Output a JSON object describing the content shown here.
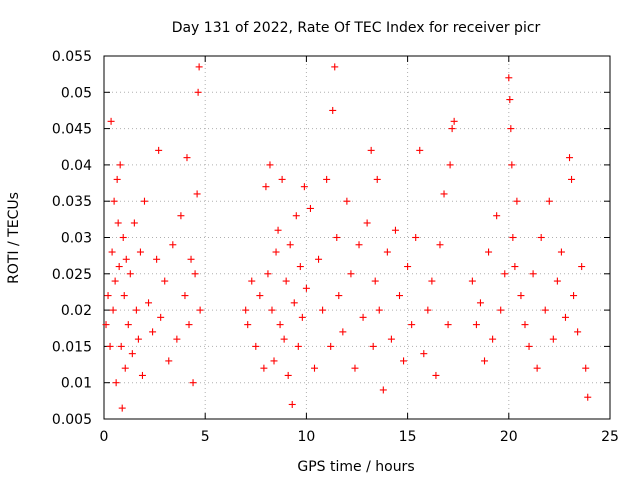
{
  "chart_data": {
    "type": "scatter",
    "title": "Day 131 of 2022, Rate Of TEC Index for receiver picr",
    "xlabel": "GPS time / hours",
    "ylabel": "ROTI / TECUs",
    "xlim": [
      0,
      25
    ],
    "ylim": [
      0.005,
      0.055
    ],
    "xticks": [
      "0",
      "5",
      "10",
      "15",
      "20",
      "25"
    ],
    "yticks": [
      "0.005",
      "0.01",
      "0.015",
      "0.02",
      "0.025",
      "0.03",
      "0.035",
      "0.04",
      "0.045",
      "0.05",
      "0.055"
    ],
    "grid": true,
    "marker": "+",
    "color": "#ff0000",
    "series": [
      {
        "name": "ROTI",
        "x": [
          0.1,
          0.2,
          0.3,
          0.35,
          0.4,
          0.45,
          0.5,
          0.55,
          0.6,
          0.65,
          0.7,
          0.75,
          0.8,
          0.85,
          0.9,
          0.95,
          1.0,
          1.05,
          1.1,
          1.2,
          1.3,
          1.4,
          1.5,
          1.6,
          1.7,
          1.8,
          1.9,
          2.0,
          2.2,
          2.4,
          2.6,
          2.7,
          2.8,
          3.0,
          3.2,
          3.4,
          3.6,
          3.8,
          4.0,
          4.1,
          4.2,
          4.3,
          4.4,
          4.5,
          4.6,
          4.65,
          4.7,
          4.75,
          7.0,
          7.1,
          7.3,
          7.5,
          7.7,
          7.9,
          8.0,
          8.1,
          8.2,
          8.3,
          8.4,
          8.5,
          8.6,
          8.7,
          8.8,
          8.9,
          9.0,
          9.1,
          9.2,
          9.3,
          9.4,
          9.5,
          9.6,
          9.7,
          9.8,
          9.9,
          10.0,
          10.2,
          10.4,
          10.6,
          10.8,
          11.0,
          11.2,
          11.3,
          11.4,
          11.5,
          11.6,
          11.8,
          12.0,
          12.2,
          12.4,
          12.6,
          12.8,
          13.0,
          13.2,
          13.3,
          13.4,
          13.5,
          13.6,
          13.8,
          14.0,
          14.2,
          14.4,
          14.6,
          14.8,
          15.0,
          15.2,
          15.4,
          15.6,
          15.8,
          16.0,
          16.2,
          16.4,
          16.6,
          16.8,
          17.0,
          17.1,
          17.2,
          17.3,
          18.2,
          18.4,
          18.6,
          18.8,
          19.0,
          19.2,
          19.4,
          19.6,
          19.8,
          20.0,
          20.05,
          20.1,
          20.15,
          20.2,
          20.3,
          20.4,
          20.6,
          20.8,
          21.0,
          21.2,
          21.4,
          21.6,
          21.8,
          22.0,
          22.2,
          22.4,
          22.6,
          22.8,
          23.0,
          23.1,
          23.2,
          23.4,
          23.6,
          23.8,
          23.9
        ],
        "y": [
          0.018,
          0.022,
          0.015,
          0.046,
          0.028,
          0.02,
          0.035,
          0.024,
          0.01,
          0.038,
          0.032,
          0.026,
          0.04,
          0.015,
          0.0065,
          0.03,
          0.022,
          0.012,
          0.027,
          0.018,
          0.025,
          0.014,
          0.032,
          0.02,
          0.016,
          0.028,
          0.011,
          0.035,
          0.021,
          0.017,
          0.027,
          0.042,
          0.019,
          0.024,
          0.013,
          0.029,
          0.016,
          0.033,
          0.022,
          0.041,
          0.018,
          0.027,
          0.01,
          0.025,
          0.036,
          0.05,
          0.0535,
          0.02,
          0.02,
          0.018,
          0.024,
          0.015,
          0.022,
          0.012,
          0.037,
          0.025,
          0.04,
          0.02,
          0.013,
          0.028,
          0.031,
          0.018,
          0.038,
          0.016,
          0.024,
          0.011,
          0.029,
          0.007,
          0.021,
          0.033,
          0.015,
          0.026,
          0.019,
          0.037,
          0.023,
          0.034,
          0.012,
          0.027,
          0.02,
          0.038,
          0.015,
          0.0475,
          0.0535,
          0.03,
          0.022,
          0.017,
          0.035,
          0.025,
          0.012,
          0.029,
          0.019,
          0.032,
          0.042,
          0.015,
          0.024,
          0.038,
          0.02,
          0.009,
          0.028,
          0.016,
          0.031,
          0.022,
          0.013,
          0.026,
          0.018,
          0.03,
          0.042,
          0.014,
          0.02,
          0.024,
          0.011,
          0.029,
          0.036,
          0.018,
          0.04,
          0.045,
          0.046,
          0.024,
          0.018,
          0.021,
          0.013,
          0.028,
          0.016,
          0.033,
          0.02,
          0.025,
          0.052,
          0.049,
          0.045,
          0.04,
          0.03,
          0.026,
          0.035,
          0.022,
          0.018,
          0.015,
          0.025,
          0.012,
          0.03,
          0.02,
          0.035,
          0.016,
          0.024,
          0.028,
          0.019,
          0.041,
          0.038,
          0.022,
          0.017,
          0.026,
          0.012,
          0.008
        ]
      }
    ]
  }
}
